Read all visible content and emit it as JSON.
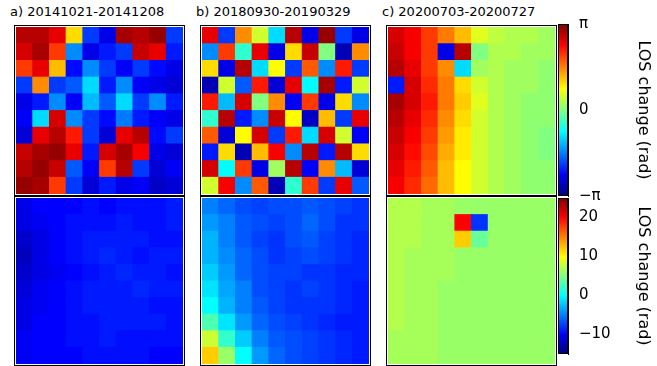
{
  "chart_data": {
    "type": "heatmap",
    "tick_labels": false,
    "titles": [
      "a) 20141021-20141208",
      "b) 20180930-20190329",
      "c) 20200703-20200727"
    ],
    "rows": [
      {
        "colorbar": {
          "label": "LOS change (rad)",
          "zlim": [
            -3.14159,
            3.14159
          ],
          "zticks": [
            {
              "value": -3.14159,
              "label": "−π"
            },
            0,
            {
              "value": 3.14159,
              "label": "π"
            }
          ]
        },
        "panels": [
          [
            [
              2.8,
              2.8,
              2.5,
              1.0,
              -2.0,
              -2.5,
              2.9,
              2.8,
              3.0,
              -2.0
            ],
            [
              2.6,
              2.9,
              2.0,
              -1.5,
              -2.5,
              -2.2,
              -2.0,
              2.7,
              2.5,
              -2.2
            ],
            [
              2.0,
              2.5,
              1.2,
              -2.3,
              -1.5,
              -2.0,
              -2.4,
              -2.0,
              -2.3,
              -2.5
            ],
            [
              -2.0,
              1.5,
              -2.0,
              -1.8,
              -1.0,
              -2.2,
              -1.5,
              -2.4,
              -2.5,
              -2.6
            ],
            [
              -2.5,
              -2.2,
              -1.5,
              -2.4,
              -1.2,
              -1.8,
              -1.0,
              -2.0,
              -1.5,
              -2.2
            ],
            [
              -2.4,
              -1.0,
              2.6,
              -1.5,
              -2.0,
              -2.3,
              -1.6,
              -2.2,
              -2.4,
              -2.5
            ],
            [
              -2.6,
              2.5,
              2.8,
              2.2,
              -2.0,
              -2.6,
              2.5,
              2.8,
              -2.3,
              -2.0
            ],
            [
              2.7,
              2.9,
              3.0,
              2.5,
              -2.2,
              2.6,
              2.9,
              2.4,
              -2.5,
              -2.6
            ],
            [
              2.8,
              3.0,
              2.7,
              -1.8,
              -2.4,
              2.0,
              2.8,
              -2.0,
              -2.6,
              -2.4
            ],
            [
              3.0,
              2.9,
              2.0,
              -2.0,
              -2.6,
              -2.2,
              -2.5,
              -2.4,
              -2.7,
              -2.6
            ]
          ],
          [
            [
              2.5,
              -2.0,
              1.5,
              0.5,
              -1.0,
              2.8,
              -2.5,
              3.0,
              -2.0,
              -2.5
            ],
            [
              -1.5,
              2.0,
              -0.5,
              2.5,
              -2.5,
              1.0,
              2.7,
              0.0,
              -2.8,
              1.5
            ],
            [
              1.0,
              -2.5,
              2.8,
              -1.0,
              0.8,
              -2.0,
              1.8,
              -1.5,
              2.2,
              -2.0
            ],
            [
              -2.8,
              0.5,
              -1.8,
              2.2,
              -2.6,
              2.5,
              -0.8,
              2.9,
              -2.2,
              0.5
            ],
            [
              2.2,
              -1.2,
              2.6,
              0.0,
              1.5,
              -2.4,
              2.0,
              -2.5,
              1.0,
              -1.5
            ],
            [
              -0.5,
              2.8,
              -2.2,
              -1.5,
              2.7,
              0.8,
              -2.7,
              1.2,
              -2.0,
              2.5
            ],
            [
              1.8,
              -2.6,
              0.8,
              2.6,
              -2.0,
              2.2,
              -1.0,
              2.6,
              0.5,
              -2.4
            ],
            [
              -2.2,
              1.0,
              -2.8,
              1.2,
              2.4,
              -1.5,
              2.8,
              -2.2,
              2.8,
              1.0
            ],
            [
              2.6,
              -0.8,
              2.0,
              -2.5,
              0.2,
              2.8,
              -2.4,
              1.5,
              -1.2,
              -2.6
            ],
            [
              0.5,
              2.4,
              -1.5,
              1.8,
              -2.8,
              -0.5,
              2.0,
              -2.0,
              2.5,
              -1.8
            ]
          ],
          [
            [
              2.6,
              2.4,
              2.0,
              1.6,
              1.2,
              0.6,
              0.4,
              0.3,
              0.3,
              0.2
            ],
            [
              2.7,
              2.4,
              2.0,
              -2.5,
              2.8,
              0.0,
              0.3,
              0.3,
              0.2,
              0.2
            ],
            [
              2.8,
              2.5,
              2.0,
              1.5,
              -1.0,
              0.2,
              0.3,
              0.2,
              0.2,
              0.1
            ],
            [
              -2.2,
              2.6,
              2.1,
              1.6,
              1.0,
              0.5,
              0.3,
              0.2,
              0.2,
              0.1
            ],
            [
              2.9,
              2.6,
              2.2,
              1.6,
              1.1,
              0.6,
              0.3,
              0.2,
              0.1,
              0.1
            ],
            [
              2.8,
              2.5,
              2.1,
              1.5,
              1.0,
              0.5,
              0.3,
              0.2,
              0.1,
              0.1
            ],
            [
              2.7,
              2.4,
              2.0,
              1.4,
              0.9,
              0.5,
              0.3,
              0.2,
              0.1,
              0.0
            ],
            [
              2.6,
              2.3,
              1.9,
              1.3,
              0.9,
              0.5,
              0.3,
              0.2,
              0.1,
              0.0
            ],
            [
              2.5,
              2.2,
              1.8,
              1.2,
              0.8,
              0.5,
              0.3,
              0.2,
              0.1,
              0.1
            ],
            [
              2.4,
              2.1,
              1.7,
              1.2,
              0.8,
              0.5,
              0.3,
              0.2,
              0.1,
              0.1
            ]
          ]
        ]
      },
      {
        "colorbar": {
          "label": "LOS change (rad)",
          "zlim": [
            -15,
            25
          ],
          "zticks": [
            {
              "value": -10,
              "label": "−10"
            },
            0,
            10,
            20
          ]
        },
        "panels": [
          [
            [
              -11,
              -10,
              -10,
              -10,
              -9.5,
              -10,
              -9.5,
              -9.5,
              -9.5,
              -9
            ],
            [
              -11,
              -10.5,
              -10,
              -9.5,
              -9.5,
              -9.5,
              -9,
              -9.5,
              -9.5,
              -9
            ],
            [
              -12,
              -11,
              -10,
              -9.5,
              -9,
              -9,
              -9,
              -9,
              -9.5,
              -9.5
            ],
            [
              -12.5,
              -11,
              -10,
              -9.5,
              -9,
              -8.5,
              -9,
              -9.5,
              -9,
              -9
            ],
            [
              -12,
              -11,
              -10.5,
              -10,
              -9.5,
              -9,
              -8.5,
              -9,
              -9,
              -9.5
            ],
            [
              -11.5,
              -10.5,
              -10,
              -9.5,
              -9,
              -9,
              -9,
              -8.5,
              -9,
              -9
            ],
            [
              -11,
              -10.5,
              -10,
              -9.5,
              -9,
              -9,
              -9,
              -9,
              -9.5,
              -9.5
            ],
            [
              -11,
              -10,
              -10,
              -9.5,
              -9.5,
              -9,
              -9,
              -9,
              -9,
              -9.5
            ],
            [
              -10.5,
              -10,
              -10,
              -9.5,
              -9.5,
              -9,
              -9.5,
              -9.5,
              -9.5,
              -9.5
            ],
            [
              -10.5,
              -10,
              -10,
              -10,
              -9.5,
              -9.5,
              -9.5,
              -9.5,
              -10,
              -10
            ]
          ],
          [
            [
              -5,
              -6,
              -7,
              -7.5,
              -7,
              -7,
              -6.5,
              -7,
              -7.5,
              -8
            ],
            [
              -4,
              -5,
              -6.5,
              -7,
              -7.5,
              -7,
              -6,
              -7,
              -8,
              -8
            ],
            [
              -3,
              -5,
              -6.5,
              -7.5,
              -8,
              -7,
              -6.5,
              -7.5,
              -8,
              -8.5
            ],
            [
              -3,
              -4.5,
              -6,
              -7,
              -8,
              -7.5,
              -7,
              -7.5,
              -8,
              -8.5
            ],
            [
              -2,
              -4,
              -6,
              -7,
              -7.5,
              -7.5,
              -8,
              -8,
              -8.5,
              -8.5
            ],
            [
              -1,
              -3.5,
              -5,
              -7,
              -7.5,
              -8,
              -7.5,
              -8,
              -8.5,
              -9
            ],
            [
              0,
              -3,
              -5,
              -6.5,
              -7.5,
              -8,
              -8,
              -8,
              -8.5,
              -9
            ],
            [
              3,
              -1,
              -4,
              -6,
              -7,
              -7.5,
              -8,
              -8.5,
              -9,
              -9
            ],
            [
              8,
              2,
              -2,
              -5,
              -6.5,
              -7,
              -7.5,
              -8,
              -8.5,
              -9
            ],
            [
              12,
              6,
              0,
              -4,
              -6,
              -7,
              -7.5,
              -8,
              -8.5,
              -9
            ]
          ],
          [
            [
              7,
              7,
              6.5,
              6.5,
              6,
              6,
              6,
              6,
              6,
              6
            ],
            [
              7,
              7,
              6.5,
              6.5,
              20,
              -8,
              6,
              6,
              6,
              6
            ],
            [
              7,
              7,
              6.5,
              6.5,
              12,
              4,
              6,
              6,
              6,
              6
            ],
            [
              7,
              6.5,
              6.5,
              6.5,
              6,
              6,
              6,
              6,
              6,
              6
            ],
            [
              7,
              6.5,
              6.5,
              6.5,
              6,
              6,
              6,
              6,
              6,
              6
            ],
            [
              7,
              6.5,
              6.5,
              6,
              6,
              6,
              6,
              6,
              6,
              6
            ],
            [
              7,
              6.5,
              6.5,
              6,
              6,
              6,
              6,
              6,
              6,
              6
            ],
            [
              7,
              6.5,
              6.5,
              6,
              6,
              6,
              6,
              6,
              6,
              6
            ],
            [
              6.5,
              6.5,
              6.5,
              6,
              6,
              6,
              6,
              6,
              6,
              6
            ],
            [
              6.5,
              6.5,
              6.5,
              6,
              6,
              6,
              6,
              6,
              6,
              6
            ]
          ]
        ]
      }
    ]
  }
}
